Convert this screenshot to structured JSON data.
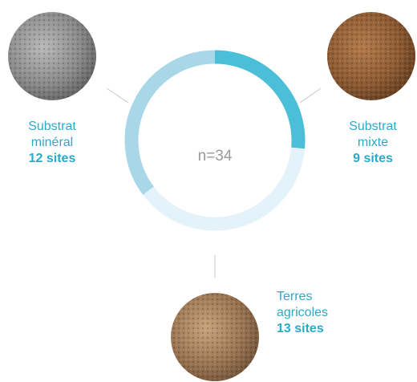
{
  "chart_data": {
    "type": "donut",
    "center_label": "n=34",
    "categories": [
      "Substrat mixte",
      "Terres agricoles",
      "Substrat minéral"
    ],
    "values": [
      9,
      13,
      12
    ],
    "value_labels": [
      "9 sites",
      "13 sites",
      "12 sites"
    ],
    "colors": [
      "#4bbfd8",
      "#e4f2f9",
      "#a8d7e8"
    ]
  }
}
